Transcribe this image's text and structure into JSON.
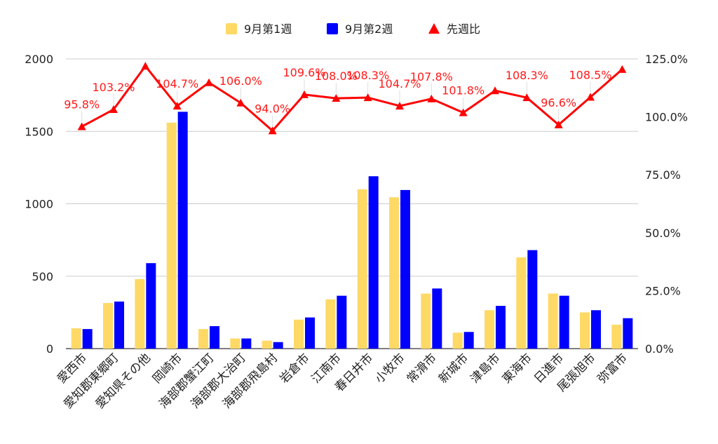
{
  "chart_data": {
    "type": "bar",
    "categories": [
      "愛西市",
      "愛知郡東郷町",
      "愛知県その他",
      "岡崎市",
      "海部郡蟹江町",
      "海部郡大治町",
      "海部郡飛島村",
      "岩倉市",
      "江南市",
      "春日井市",
      "小牧市",
      "常滑市",
      "新城市",
      "津島市",
      "東海市",
      "日進市",
      "尾張旭市",
      "弥富市"
    ],
    "series": [
      {
        "name": "9月第1週",
        "type": "bar",
        "axis": "left",
        "color": "#ffd966",
        "values": [
          140,
          315,
          480,
          1560,
          135,
          70,
          55,
          200,
          340,
          1100,
          1045,
          380,
          110,
          265,
          630,
          380,
          250,
          165
        ]
      },
      {
        "name": "9月第2週",
        "type": "bar",
        "axis": "left",
        "color": "#0000ff",
        "values": [
          135,
          325,
          590,
          1635,
          155,
          70,
          45,
          215,
          365,
          1190,
          1095,
          415,
          115,
          295,
          680,
          365,
          265,
          210
        ]
      },
      {
        "name": "先週比",
        "type": "line",
        "axis": "right",
        "color": "#ff0000",
        "marker": "triangle",
        "values": [
          95.8,
          103.2,
          121.9,
          104.7,
          114.8,
          106.0,
          94.0,
          109.6,
          108.0,
          108.3,
          104.7,
          107.8,
          101.8,
          111.3,
          108.3,
          96.6,
          108.5,
          120.5
        ],
        "labels": [
          "95.8%",
          "103.2%",
          "",
          "104.7%",
          "",
          "106.0%",
          "94.0%",
          "109.6%",
          "108.0%",
          "108.3%",
          "104.7%",
          "107.8%",
          "101.8%",
          "",
          "108.3%",
          "96.6%",
          "108.5%",
          ""
        ]
      }
    ],
    "y_left": {
      "min": 0,
      "max": 2000,
      "ticks": [
        0,
        500,
        1000,
        1500,
        2000
      ],
      "tick_labels": [
        "0",
        "500",
        "1000",
        "1500",
        "2000"
      ]
    },
    "y_right": {
      "min": 0,
      "max": 125,
      "ticks": [
        0,
        25,
        50,
        75,
        100,
        125
      ],
      "tick_labels": [
        "0.0%",
        "25.0%",
        "50.0%",
        "75.0%",
        "100.0%",
        "125.0%"
      ]
    },
    "title": "",
    "xlabel": "",
    "ylabel": "",
    "grid": true,
    "legend_position": "top-center"
  }
}
